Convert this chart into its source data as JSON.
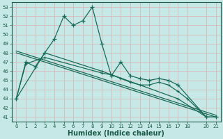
{
  "xlabel": "Humidex (Indice chaleur)",
  "bg_color": "#c6e8e6",
  "grid_color": "#d8b8b8",
  "line_color": "#1a6b5a",
  "xlim": [
    -0.5,
    21.5
  ],
  "ylim": [
    40.5,
    53.5
  ],
  "yticks": [
    41,
    42,
    43,
    44,
    45,
    46,
    47,
    48,
    49,
    50,
    51,
    52,
    53
  ],
  "xticks": [
    0,
    1,
    2,
    3,
    4,
    5,
    6,
    7,
    8,
    9,
    10,
    11,
    12,
    13,
    14,
    15,
    16,
    17,
    18,
    20,
    21
  ],
  "series1_x": [
    0,
    1,
    2,
    3,
    4,
    5,
    6,
    7,
    8,
    9,
    10,
    11,
    12,
    13,
    14,
    15,
    16,
    17,
    20,
    21
  ],
  "series1_y": [
    43,
    47,
    46.5,
    48,
    49.5,
    52,
    51,
    51.5,
    53,
    49,
    45.5,
    47,
    45.5,
    45.2,
    45,
    45.2,
    45,
    44.5,
    41,
    41
  ],
  "trend1_x": [
    0,
    21
  ],
  "trend1_y": [
    48.0,
    41.0
  ],
  "trend2_x": [
    0,
    21
  ],
  "trend2_y": [
    48.2,
    41.2
  ],
  "series2_x": [
    0,
    1,
    3,
    9,
    10,
    11,
    12,
    13,
    14,
    15,
    16,
    17,
    18,
    20,
    21
  ],
  "series2_y": [
    43.0,
    46.8,
    47.5,
    45.8,
    45.6,
    45.2,
    44.8,
    44.5,
    44.5,
    44.8,
    44.5,
    43.8,
    43.0,
    41.0,
    41.0
  ],
  "series3_x": [
    0,
    3,
    9,
    17,
    20,
    21
  ],
  "series3_y": [
    43.0,
    48.0,
    46.0,
    43.0,
    41.0,
    41.0
  ]
}
